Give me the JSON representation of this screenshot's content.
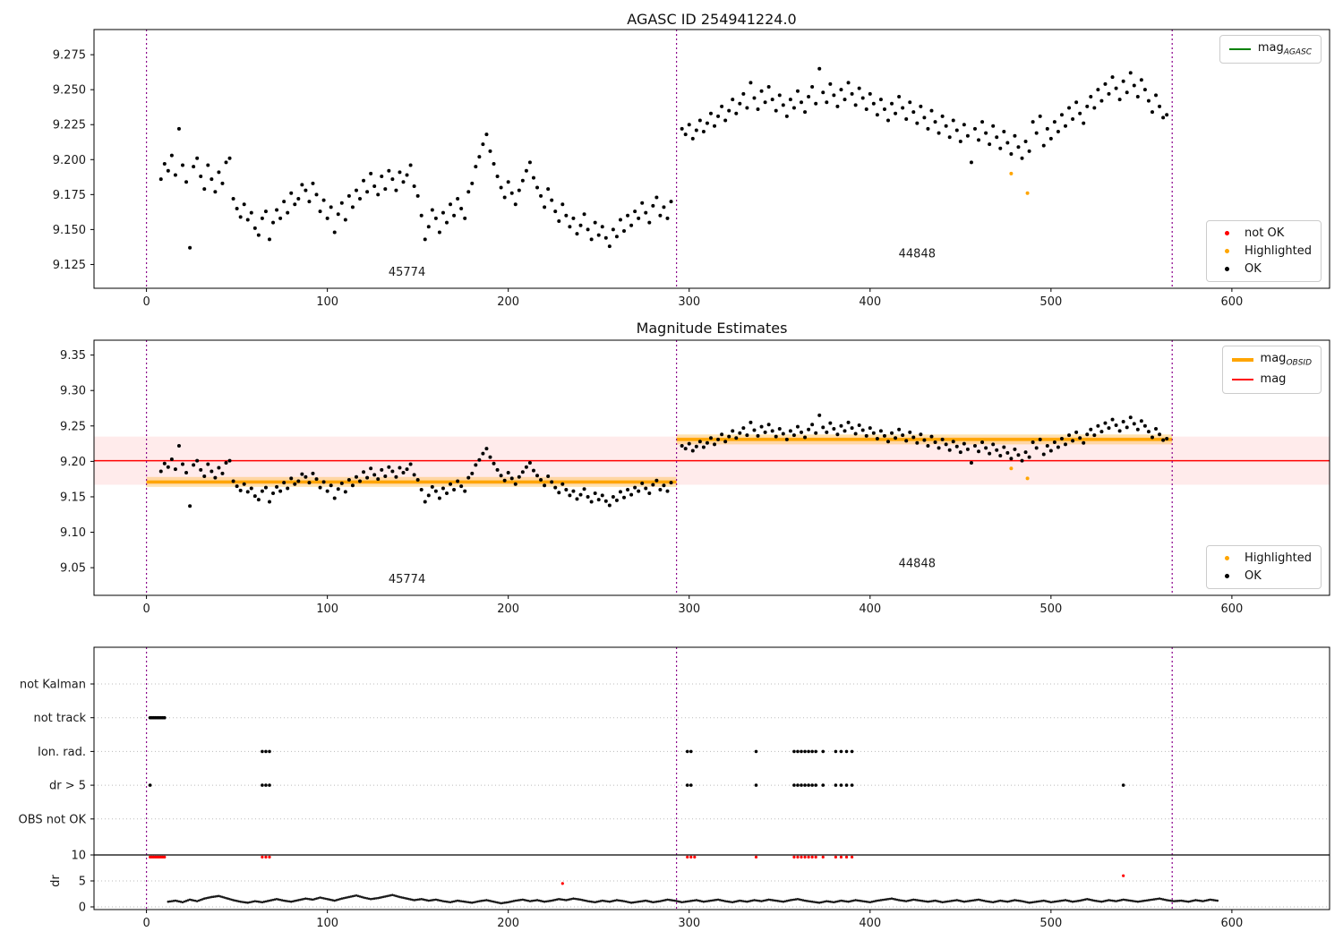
{
  "colors": {
    "ok": "#000000",
    "not_ok": "#ff0000",
    "highlighted": "#ffa500",
    "mag_agasc": "#008000",
    "mag_obsid": "#ffa500",
    "mag": "#ff0000",
    "vline": "#8b008b",
    "grid": "#bbbbbb",
    "dr_trace": "#1a1a1a"
  },
  "legends": {
    "top_line": [
      {
        "label": "mag",
        "sub": "AGASC"
      }
    ],
    "top_markers": [
      {
        "label": "not OK"
      },
      {
        "label": "Highlighted"
      },
      {
        "label": "OK"
      }
    ],
    "mid_lines": [
      {
        "label": "mag",
        "sub": "OBSID"
      },
      {
        "label": "mag",
        "sub": ""
      }
    ],
    "mid_markers": [
      {
        "label": "Highlighted"
      },
      {
        "label": "OK"
      }
    ]
  },
  "chart_data": [
    {
      "id": "top",
      "type": "scatter",
      "title": "AGASC ID 254941224.0",
      "xlim": [
        -29,
        654
      ],
      "ylim": [
        9.108,
        9.293
      ],
      "x_ticks": [
        0,
        100,
        200,
        300,
        400,
        500,
        600
      ],
      "y_tick_vals": [
        9.125,
        9.15,
        9.175,
        9.2,
        9.225,
        9.25,
        9.275
      ],
      "y_tick_labels": [
        "9.125",
        "9.150",
        "9.175",
        "9.200",
        "9.225",
        "9.250",
        "9.275"
      ],
      "vlines": [
        0,
        293,
        567
      ],
      "annotations": [
        {
          "text": "45774",
          "x": 144,
          "y": 9.117
        },
        {
          "text": "44848",
          "x": 426,
          "y": 9.13
        }
      ],
      "ok_segments": [
        {
          "obsid": "45774",
          "x_start": 8,
          "x_step": 2,
          "y": [
            9.186,
            9.197,
            9.192,
            9.203,
            9.189,
            9.222,
            9.196,
            9.184,
            9.137,
            9.195,
            9.201,
            9.188,
            9.179,
            9.196,
            9.186,
            9.177,
            9.191,
            9.183,
            9.198,
            9.201,
            9.172,
            9.165,
            9.159,
            9.168,
            9.157,
            9.162,
            9.151,
            9.146,
            9.158,
            9.163,
            9.143,
            9.155,
            9.164,
            9.158,
            9.17,
            9.162,
            9.176,
            9.168,
            9.172,
            9.182,
            9.178,
            9.17,
            9.183,
            9.175,
            9.163,
            9.171,
            9.158,
            9.166,
            9.148,
            9.161,
            9.169,
            9.157,
            9.174,
            9.166,
            9.178,
            9.172,
            9.185,
            9.177,
            9.19,
            9.181,
            9.175,
            9.188,
            9.179,
            9.192,
            9.186,
            9.178,
            9.191,
            9.184,
            9.189,
            9.196,
            9.181,
            9.174,
            9.16,
            9.143,
            9.152,
            9.164,
            9.158,
            9.148,
            9.162,
            9.155,
            9.168,
            9.16,
            9.172,
            9.165,
            9.158,
            9.177,
            9.183,
            9.195,
            9.202,
            9.211,
            9.218,
            9.206,
            9.197,
            9.188,
            9.18,
            9.173,
            9.184,
            9.176,
            9.168,
            9.178,
            9.185,
            9.192,
            9.198,
            9.187,
            9.18,
            9.174,
            9.166,
            9.179,
            9.171,
            9.163,
            9.156,
            9.168,
            9.16,
            9.152,
            9.158,
            9.147,
            9.153,
            9.161,
            9.15,
            9.143,
            9.155,
            9.146,
            9.152,
            9.144,
            9.138,
            9.15,
            9.145,
            9.157,
            9.149,
            9.16,
            9.153,
            9.163,
            9.158,
            9.169,
            9.162,
            9.155,
            9.167,
            9.173,
            9.16,
            9.166,
            9.158,
            9.17
          ]
        },
        {
          "obsid": "44848",
          "x_start": 296,
          "x_step": 2,
          "y": [
            9.222,
            9.218,
            9.225,
            9.215,
            9.221,
            9.228,
            9.22,
            9.226,
            9.233,
            9.224,
            9.231,
            9.238,
            9.228,
            9.235,
            9.243,
            9.233,
            9.24,
            9.247,
            9.237,
            9.255,
            9.244,
            9.236,
            9.249,
            9.241,
            9.252,
            9.243,
            9.235,
            9.246,
            9.239,
            9.231,
            9.243,
            9.237,
            9.249,
            9.241,
            9.234,
            9.245,
            9.252,
            9.24,
            9.265,
            9.248,
            9.241,
            9.254,
            9.246,
            9.238,
            9.25,
            9.243,
            9.255,
            9.247,
            9.239,
            9.251,
            9.244,
            9.236,
            9.247,
            9.24,
            9.232,
            9.243,
            9.236,
            9.228,
            9.24,
            9.233,
            9.245,
            9.237,
            9.229,
            9.241,
            9.234,
            9.226,
            9.238,
            9.23,
            9.222,
            9.235,
            9.227,
            9.219,
            9.231,
            9.224,
            9.216,
            9.228,
            9.221,
            9.213,
            9.225,
            9.217,
            9.198,
            9.222,
            9.214,
            9.227,
            9.219,
            9.211,
            9.224,
            9.216,
            9.208,
            9.22,
            9.212,
            9.204,
            9.217,
            9.209,
            9.201,
            9.213,
            9.206,
            9.227,
            9.219,
            9.231,
            9.21,
            9.222,
            9.215,
            9.227,
            9.22,
            9.232,
            9.224,
            9.237,
            9.229,
            9.241,
            9.233,
            9.226,
            9.238,
            9.245,
            9.237,
            9.25,
            9.242,
            9.254,
            9.247,
            9.259,
            9.251,
            9.243,
            9.256,
            9.248,
            9.262,
            9.253,
            9.245,
            9.257,
            9.25,
            9.242,
            9.234,
            9.246,
            9.238,
            9.23,
            9.232
          ]
        }
      ],
      "highlighted": [
        [
          478,
          9.19
        ],
        [
          487,
          9.176
        ]
      ]
    },
    {
      "id": "middle",
      "type": "scatter",
      "title": "Magnitude Estimates",
      "xlim": [
        -29,
        654
      ],
      "ylim": [
        9.011,
        9.371
      ],
      "x_ticks": [
        0,
        100,
        200,
        300,
        400,
        500,
        600
      ],
      "y_tick_vals": [
        9.05,
        9.1,
        9.15,
        9.2,
        9.25,
        9.3,
        9.35
      ],
      "y_tick_labels": [
        "9.05",
        "9.10",
        "9.15",
        "9.20",
        "9.25",
        "9.30",
        "9.35"
      ],
      "vlines": [
        0,
        293,
        567
      ],
      "mag_line": 9.201,
      "mag_band": [
        9.167,
        9.235
      ],
      "obsid_lines": [
        {
          "obsid": "45774",
          "x0": 0,
          "x1": 293,
          "y": 9.171,
          "band": [
            9.164,
            9.178
          ]
        },
        {
          "obsid": "44848",
          "x0": 293,
          "x1": 567,
          "y": 9.231,
          "band": [
            9.224,
            9.238
          ]
        }
      ],
      "annotations": [
        {
          "text": "45774",
          "x": 144,
          "y": 9.029
        },
        {
          "text": "44848",
          "x": 426,
          "y": 9.051
        }
      ],
      "ok_segments_ref": "top",
      "highlighted": [
        [
          478,
          9.19
        ],
        [
          487,
          9.176
        ]
      ]
    },
    {
      "id": "bottom",
      "type": "flags",
      "xlim": [
        -29,
        654
      ],
      "x_ticks": [
        0,
        100,
        200,
        300,
        400,
        500,
        600
      ],
      "vlines": [
        0,
        293,
        567
      ],
      "categories": [
        "not Kalman",
        "not track",
        "Ion. rad.",
        "dr > 5",
        "OBS not OK"
      ],
      "flag_points": {
        "not Kalman": [],
        "not track": [
          2,
          3,
          4,
          5,
          6,
          7,
          8,
          9,
          10
        ],
        "Ion. rad.": [
          64,
          66,
          68,
          299,
          301,
          337,
          358,
          360,
          362,
          364,
          366,
          368,
          370,
          374,
          381,
          384,
          387,
          390
        ],
        "dr > 5": [
          2,
          64,
          66,
          68,
          299,
          301,
          337,
          358,
          360,
          362,
          364,
          366,
          368,
          370,
          374,
          381,
          384,
          387,
          390,
          540
        ],
        "OBS not OK": []
      },
      "dr_axis": {
        "label": "dr",
        "tick_vals": [
          0,
          5,
          10
        ],
        "tick_labels": [
          "0",
          "5",
          "10"
        ],
        "limit_line": 10
      },
      "dr_trace": {
        "x_start": 12,
        "x_step": 4,
        "y": [
          1.0,
          1.2,
          0.9,
          1.4,
          1.1,
          1.6,
          1.9,
          2.1,
          1.7,
          1.3,
          1.0,
          0.8,
          1.1,
          0.9,
          1.2,
          1.5,
          1.2,
          1.0,
          1.3,
          1.6,
          1.4,
          1.8,
          1.5,
          1.2,
          1.6,
          1.9,
          2.2,
          1.8,
          1.5,
          1.7,
          2.0,
          2.3,
          1.9,
          1.6,
          1.3,
          1.5,
          1.2,
          1.4,
          1.1,
          0.9,
          1.2,
          1.0,
          0.8,
          1.1,
          1.3,
          1.0,
          0.7,
          0.9,
          1.2,
          1.4,
          1.1,
          1.3,
          1.0,
          1.2,
          1.5,
          1.3,
          1.6,
          1.4,
          1.1,
          0.9,
          1.2,
          1.0,
          1.3,
          1.1,
          0.8,
          1.0,
          1.2,
          0.9,
          1.1,
          1.4,
          1.2,
          0.9,
          1.1,
          1.3,
          1.0,
          1.2,
          1.4,
          1.1,
          0.9,
          1.2,
          1.0,
          1.3,
          1.1,
          1.4,
          1.2,
          1.0,
          1.3,
          1.5,
          1.2,
          1.0,
          0.8,
          1.1,
          0.9,
          1.2,
          1.0,
          1.3,
          1.1,
          0.9,
          1.2,
          1.4,
          1.6,
          1.3,
          1.1,
          1.4,
          1.2,
          1.0,
          1.2,
          0.9,
          1.1,
          1.3,
          1.0,
          1.2,
          1.4,
          1.1,
          0.9,
          1.2,
          1.0,
          1.3,
          1.1,
          0.8,
          1.0,
          1.2,
          0.9,
          1.1,
          1.3,
          1.0,
          1.2,
          1.5,
          1.2,
          1.0,
          1.3,
          1.1,
          1.4,
          1.2,
          1.0,
          1.2,
          1.4,
          1.6,
          1.3,
          1.1,
          1.2,
          1.0,
          1.3,
          1.1,
          1.4,
          1.2
        ]
      },
      "dr_clipped_red_x": [
        2,
        3,
        4,
        5,
        6,
        7,
        8,
        9,
        10,
        64,
        66,
        68,
        299,
        301,
        303,
        337,
        358,
        360,
        362,
        364,
        366,
        368,
        370,
        374,
        381,
        384,
        387,
        390
      ],
      "dr_red_points": [
        [
          230,
          4.5
        ],
        [
          540,
          6.0
        ]
      ]
    }
  ]
}
